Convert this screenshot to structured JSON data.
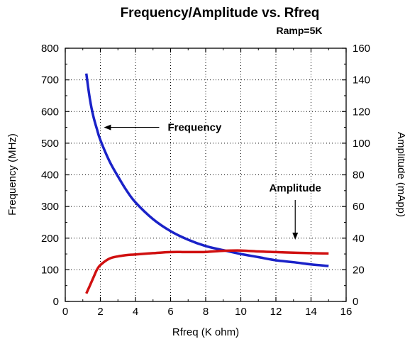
{
  "chart_data": {
    "type": "line",
    "title": "Frequency/Amplitude vs. Rfreq",
    "subtitle": "Ramp=5K",
    "xlabel": "Rfreq (K ohm)",
    "ylabel_left": "Frequency (MHz)",
    "ylabel_right": "Amplitude (mApp)",
    "xlim": [
      0,
      16
    ],
    "ylim_left": [
      0,
      800
    ],
    "ylim_right": [
      0,
      160
    ],
    "x_ticks": [
      "0",
      "2",
      "4",
      "6",
      "8",
      "10",
      "12",
      "14",
      "16"
    ],
    "y_left_ticks": [
      "0",
      "100",
      "200",
      "300",
      "400",
      "500",
      "600",
      "700",
      "800"
    ],
    "y_right_ticks": [
      "0",
      "20",
      "40",
      "60",
      "80",
      "100",
      "120",
      "140",
      "160"
    ],
    "grid": true,
    "series": [
      {
        "name": "Frequency",
        "axis": "left",
        "color": "#1a22c8",
        "x": [
          1.2,
          1.4,
          1.6,
          1.8,
          2.0,
          2.5,
          3.0,
          3.5,
          4.0,
          5.0,
          6.0,
          7.0,
          8.0,
          9.0,
          10.0,
          11.0,
          12.0,
          13.0,
          14.0,
          15.0
        ],
        "y": [
          720,
          640,
          585,
          545,
          510,
          445,
          395,
          350,
          313,
          260,
          222,
          195,
          175,
          162,
          150,
          140,
          130,
          124,
          117,
          112
        ]
      },
      {
        "name": "Amplitude",
        "axis": "right",
        "color": "#d01010",
        "x": [
          1.2,
          1.4,
          1.6,
          1.8,
          2.0,
          2.5,
          3.0,
          3.5,
          4.0,
          5.0,
          6.0,
          7.0,
          8.0,
          9.0,
          10.0,
          11.0,
          12.0,
          13.0,
          14.0,
          15.0
        ],
        "y": [
          5,
          10,
          15,
          20,
          23,
          27,
          28.5,
          29.3,
          29.7,
          30.5,
          31.2,
          31.2,
          31.3,
          32,
          32.2,
          31.6,
          31.2,
          30.8,
          30.5,
          30.3
        ]
      }
    ],
    "annotations": [
      {
        "text": "Frequency",
        "target_x": 2.2,
        "target_y_left": 550
      },
      {
        "text": "Amplitude",
        "target_x": 13.1,
        "target_y_left": 195
      }
    ]
  }
}
